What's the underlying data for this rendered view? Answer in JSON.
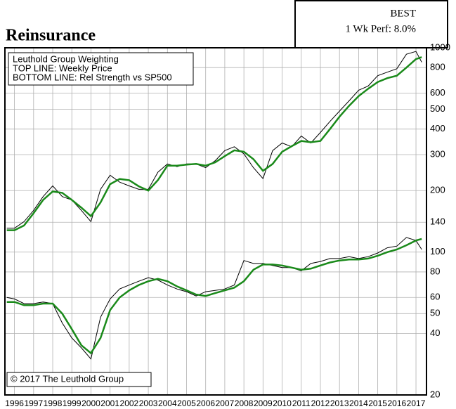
{
  "chart_data": {
    "type": "line",
    "title": "Reinsurance",
    "rating": "BEST",
    "performance": "1 Wk Perf: 8.0%",
    "legend_lines": [
      "Leuthold Group Weighting",
      "TOP LINE: Weekly Price",
      "BOTTOM LINE: Rel Strength vs SP500"
    ],
    "copyright": "© 2017 The Leuthold Group",
    "log_scale": true,
    "grid": true,
    "x": [
      1995.6,
      1996,
      1996.5,
      1997,
      1997.5,
      1998,
      1998.5,
      1999,
      1999.5,
      2000,
      2000.5,
      2001,
      2001.5,
      2002,
      2002.5,
      2003,
      2003.5,
      2004,
      2004.5,
      2005,
      2005.5,
      2006,
      2006.5,
      2007,
      2007.5,
      2008,
      2008.5,
      2009,
      2009.5,
      2010,
      2010.5,
      2011,
      2011.5,
      2012,
      2012.5,
      2013,
      2013.5,
      2014,
      2014.5,
      2015,
      2015.5,
      2016,
      2016.5,
      2017,
      2017.3
    ],
    "series": [
      {
        "color": "#000000",
        "values": [
          131,
          131,
          141,
          160,
          187,
          211,
          187,
          180,
          160,
          141,
          203,
          238,
          220,
          211,
          203,
          203,
          246,
          270,
          262,
          270,
          270,
          259,
          280,
          314,
          328,
          303,
          259,
          229,
          314,
          342,
          328,
          370,
          342,
          385,
          436,
          490,
          550,
          620,
          650,
          730,
          760,
          790,
          930,
          960,
          850
        ]
      },
      {
        "color": "#1a8a1a",
        "values": [
          128,
          128,
          135,
          155,
          180,
          198,
          195,
          180,
          165,
          150,
          175,
          215,
          228,
          225,
          210,
          200,
          225,
          265,
          265,
          268,
          270,
          265,
          275,
          295,
          315,
          310,
          285,
          250,
          270,
          310,
          330,
          350,
          345,
          350,
          400,
          460,
          520,
          580,
          630,
          680,
          710,
          730,
          800,
          880,
          900
        ]
      },
      {
        "color": "#000000",
        "values": [
          60,
          59,
          56,
          56,
          57,
          56,
          45,
          38,
          34,
          30,
          48,
          59,
          66,
          69,
          72,
          75,
          73,
          69,
          66,
          64,
          61,
          64,
          65,
          66,
          69,
          91,
          88,
          88,
          86,
          84,
          84,
          81,
          88,
          90,
          93,
          93,
          95,
          93,
          95,
          99,
          105,
          107,
          118,
          114,
          103
        ]
      },
      {
        "color": "#1a8a1a",
        "values": [
          57,
          57,
          55,
          55,
          56,
          56,
          50,
          42,
          35,
          32,
          38,
          52,
          60,
          65,
          69,
          72,
          74,
          72,
          68,
          65,
          62,
          61,
          63,
          65,
          67,
          72,
          82,
          87,
          87,
          86,
          84,
          82,
          83,
          86,
          89,
          91,
          92,
          92,
          93,
          96,
          100,
          103,
          108,
          114,
          116
        ]
      }
    ],
    "xlim": [
      1995.5,
      2017.55
    ],
    "xticks": [
      1996,
      1997,
      1998,
      1999,
      2000,
      2001,
      2002,
      2003,
      2004,
      2005,
      2006,
      2007,
      2008,
      2009,
      2010,
      2011,
      2012,
      2013,
      2014,
      2015,
      2016,
      2017
    ],
    "ylim": [
      20,
      1000
    ],
    "yticks": [
      20,
      40,
      50,
      60,
      80,
      100,
      140,
      200,
      300,
      400,
      500,
      600,
      800,
      1000
    ]
  }
}
